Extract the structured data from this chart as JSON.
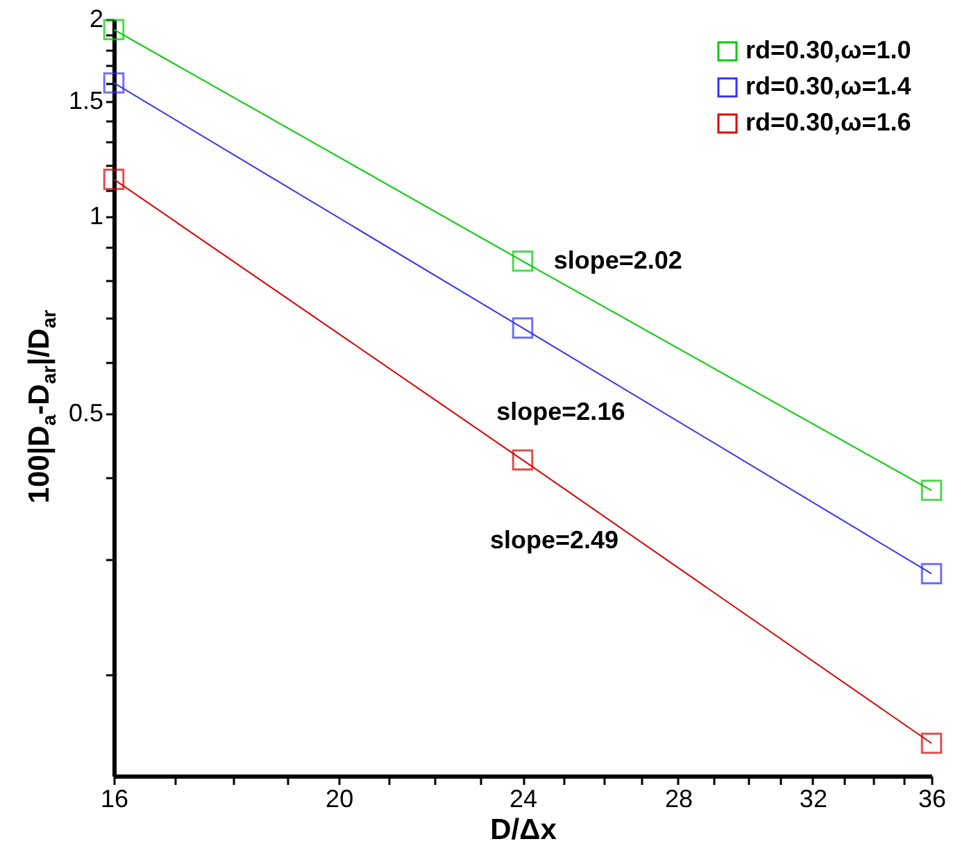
{
  "chart_data": {
    "type": "line",
    "xlabel": "D/Δx",
    "ylabel": "100|D$_{a}$-D$_{ar}$|/D$_{ar}$",
    "log": "xy",
    "grid": false,
    "legend": "top right",
    "marker": "square",
    "line_style": "solid",
    "x": [
      16,
      24,
      36
    ],
    "xlim": [
      16,
      36
    ],
    "ylim": [
      0.14,
      2
    ],
    "xticks": [
      16,
      {
        "value": 17,
        "label": null
      },
      {
        "value": 18,
        "label": null
      },
      {
        "value": 19,
        "label": null
      },
      20,
      {
        "value": 21,
        "label": null
      },
      {
        "value": 22,
        "label": null
      },
      {
        "value": 23,
        "label": null
      },
      24,
      {
        "value": 25,
        "label": null
      },
      {
        "value": 26,
        "label": null
      },
      {
        "value": 27,
        "label": null
      },
      28,
      {
        "value": 29,
        "label": null
      },
      {
        "value": 30,
        "label": null
      },
      {
        "value": 31,
        "label": null
      },
      32,
      {
        "value": 33,
        "label": null
      },
      {
        "value": 34,
        "label": null
      },
      {
        "value": 35,
        "label": null
      },
      36
    ],
    "yticks": [
      {
        "value": 0.2,
        "label": null
      },
      {
        "value": 0.3,
        "label": null
      },
      {
        "value": 0.4,
        "label": null
      },
      0.5,
      {
        "value": 0.6,
        "label": null
      },
      {
        "value": 0.7,
        "label": null
      },
      {
        "value": 0.8,
        "label": null
      },
      {
        "value": 0.9,
        "label": null
      },
      1,
      {
        "value": 1.1,
        "label": null
      },
      {
        "value": 1.2,
        "label": null
      },
      {
        "value": 1.3,
        "label": null
      },
      {
        "value": 1.4,
        "label": null
      },
      1.5,
      {
        "value": 1.6,
        "label": null
      },
      {
        "value": 1.7,
        "label": null
      },
      {
        "value": 1.8,
        "label": null
      },
      {
        "value": 1.9,
        "label": null
      },
      2
    ],
    "series": [
      {
        "name": "rd=0.30,ω=1.0",
        "color": "#00cc00",
        "values": [
          1.93,
          0.855,
          0.382
        ]
      },
      {
        "name": "rd=0.30,ω=1.4",
        "color": "#3333ff",
        "values": [
          1.6,
          0.676,
          0.285
        ]
      },
      {
        "name": "rd=0.30,ω=1.6",
        "color": "#dd0000",
        "values": [
          1.14,
          0.425,
          0.157
        ]
      }
    ],
    "annotations": [
      "slope=2.02",
      "slope=2.16",
      "slope=2.49"
    ]
  }
}
